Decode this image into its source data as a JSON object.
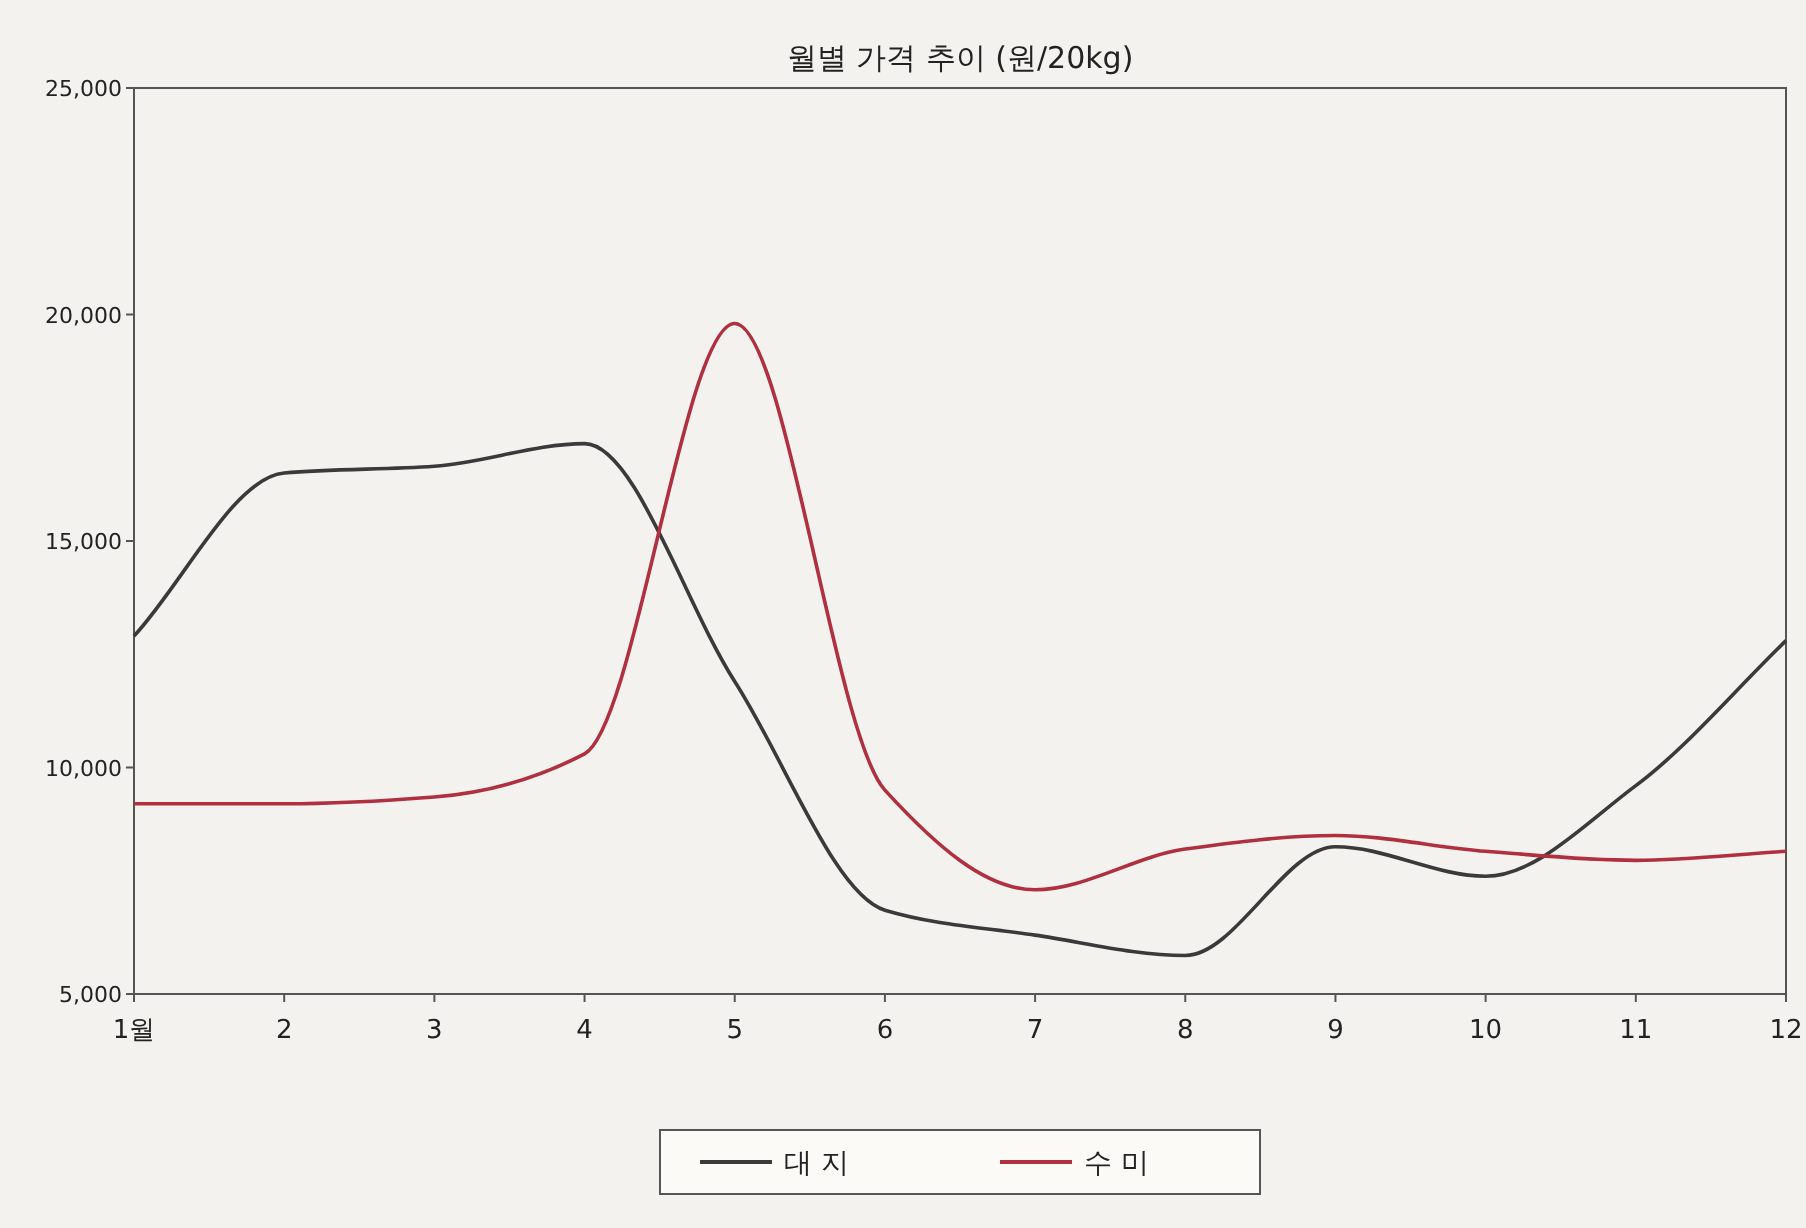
{
  "chart_data": {
    "type": "line",
    "title": "월별 가격 추이 (원/20kg)",
    "categories": [
      "1월",
      "2",
      "3",
      "4",
      "5",
      "6",
      "7",
      "8",
      "9",
      "10",
      "11",
      "12"
    ],
    "series": [
      {
        "name": "대 지",
        "color": "#3a3a3a",
        "values": [
          12900,
          16500,
          16650,
          17150,
          11900,
          6850,
          6300,
          5850,
          8250,
          7600,
          9600,
          12800
        ]
      },
      {
        "name": "수 미",
        "color": "#b03040",
        "values": [
          9200,
          9200,
          9350,
          10300,
          19800,
          9500,
          7300,
          8200,
          8500,
          8150,
          7950,
          8150
        ]
      }
    ],
    "ylim": [
      5000,
      25000
    ],
    "yticks": [
      {
        "value": 5000,
        "label": "5,000"
      },
      {
        "value": 10000,
        "label": "10,000"
      },
      {
        "value": 15000,
        "label": "15,000"
      },
      {
        "value": 20000,
        "label": "20,000"
      },
      {
        "value": 25000,
        "label": "25,000"
      }
    ],
    "grid": false,
    "legend": "bottom",
    "marker": "none",
    "line_style": "solid"
  }
}
